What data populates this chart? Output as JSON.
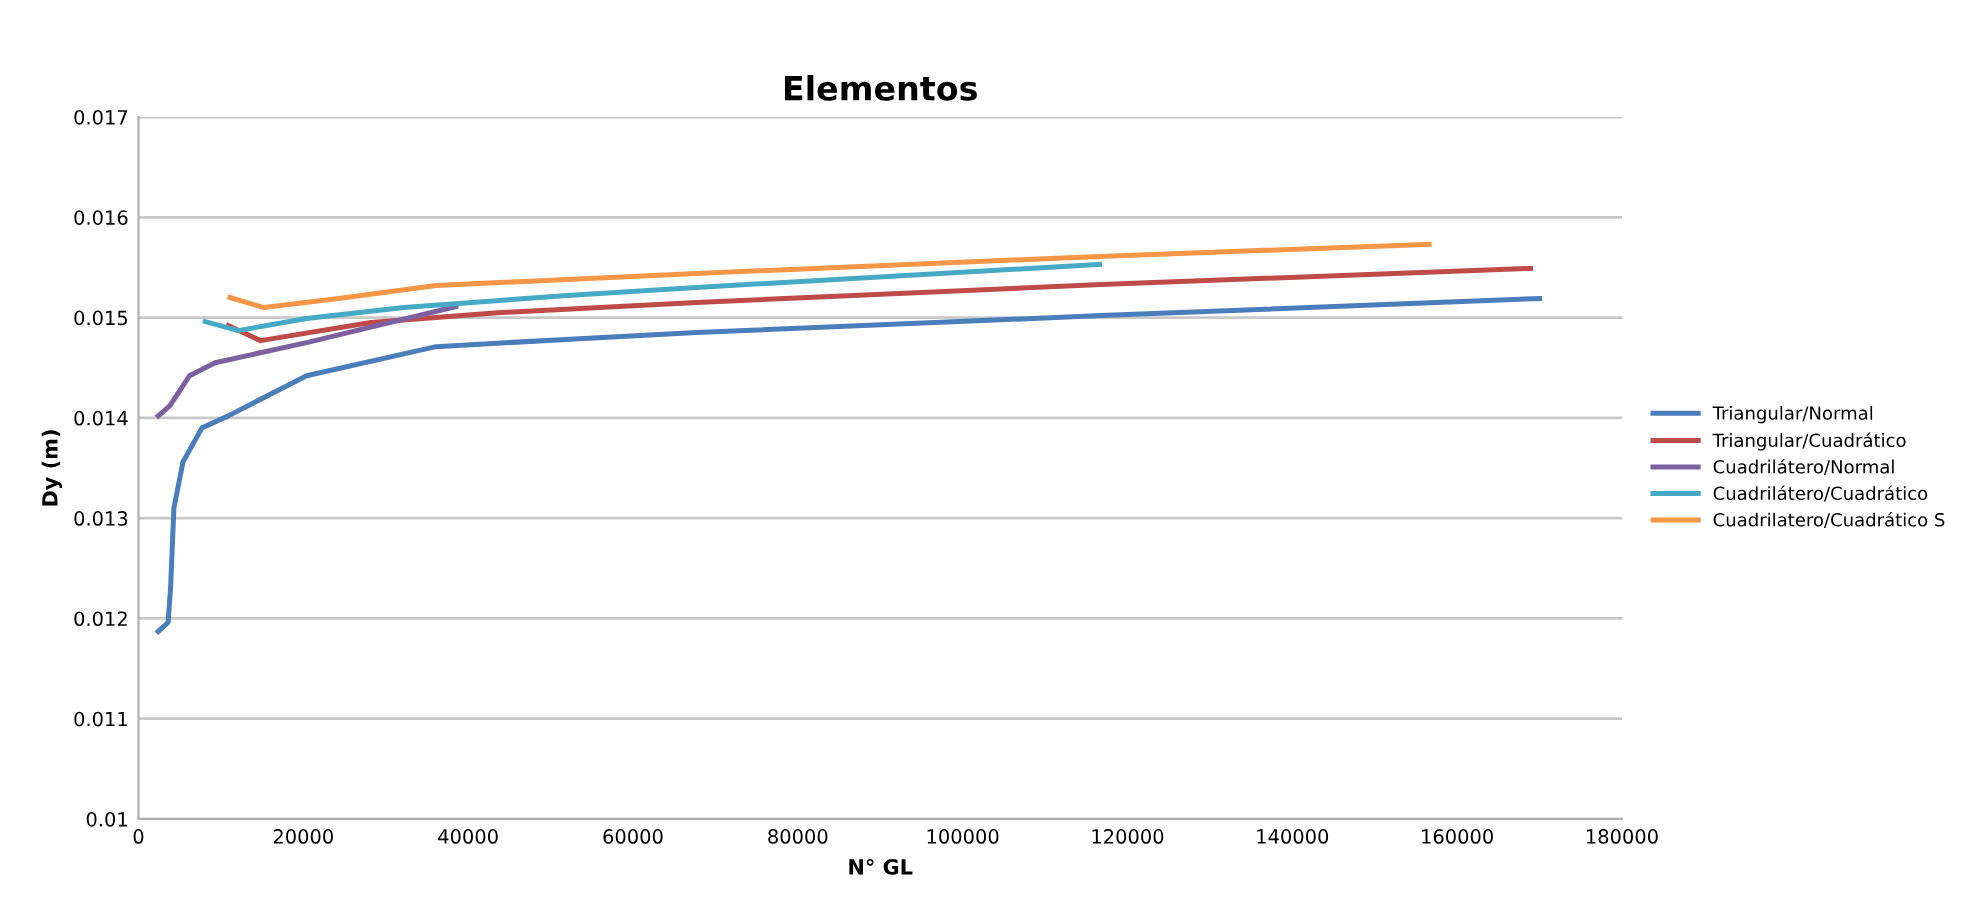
{
  "chart_data": {
    "type": "line",
    "title": "Elementos",
    "xlabel": "N° GL",
    "ylabel": "Dy (m)",
    "xlim": [
      0,
      180000
    ],
    "xticks": [
      0,
      20000,
      40000,
      60000,
      80000,
      100000,
      120000,
      140000,
      160000,
      180000
    ],
    "ylim": [
      0.01,
      0.017
    ],
    "yticks": [
      0.01,
      0.011,
      0.012,
      0.013,
      0.014,
      0.015,
      0.016,
      0.017
    ],
    "grid": "y",
    "legend": "right",
    "marker": "none",
    "line_style": "solid",
    "series": [
      {
        "name": "Triangular/Normal",
        "color": "#4a7ebb",
        "x": [
          2400,
          3600,
          3900,
          4300,
          5400,
          7700,
          10900,
          20400,
          36100,
          53500,
          67700,
          116800,
          170000
        ],
        "values": [
          0.01187,
          0.01196,
          0.01231,
          0.0131,
          0.01356,
          0.0139,
          0.01402,
          0.01442,
          0.01471,
          0.01479,
          0.01485,
          0.01502,
          0.01519
        ]
      },
      {
        "name": "Triangular/Cuadrático",
        "color": "#be4b48",
        "x": [
          10900,
          14800,
          28200,
          44000,
          67700,
          116800,
          168900
        ],
        "values": [
          0.01492,
          0.01477,
          0.01495,
          0.01505,
          0.01515,
          0.01533,
          0.01549
        ]
      },
      {
        "name": "Cuadrilátero/Normal",
        "color": "#7d60a0",
        "x": [
          2400,
          3800,
          6200,
          9300,
          20400,
          38500
        ],
        "values": [
          0.01402,
          0.01412,
          0.01442,
          0.01455,
          0.01475,
          0.01511
        ]
      },
      {
        "name": "Cuadrilátero/Cuadrático",
        "color": "#46aac5",
        "x": [
          8100,
          12100,
          20400,
          32200,
          52000,
          67700,
          116600
        ],
        "values": [
          0.01496,
          0.01487,
          0.01499,
          0.0151,
          0.01522,
          0.0153,
          0.01553
        ]
      },
      {
        "name": "Cuadrilatero/Cuadrático S",
        "color": "#f79646",
        "x": [
          11100,
          15200,
          24300,
          36100,
          67700,
          116600,
          156600
        ],
        "values": [
          0.0152,
          0.0151,
          0.01519,
          0.01532,
          0.01544,
          0.01561,
          0.01573
        ]
      }
    ]
  }
}
